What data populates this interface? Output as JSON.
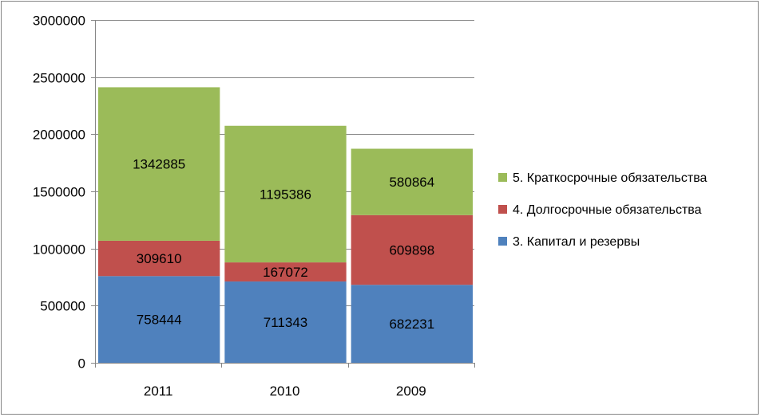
{
  "chart_data": {
    "type": "bar",
    "stacked": true,
    "categories": [
      "2011",
      "2010",
      "2009"
    ],
    "series": [
      {
        "name": "3. Капитал и резервы",
        "color": "#4F81BD",
        "values": [
          758444,
          711343,
          682231
        ]
      },
      {
        "name": "4. Долгосрочные обязательства",
        "color": "#C0504D",
        "values": [
          309610,
          167072,
          609898
        ]
      },
      {
        "name": "5. Краткосрочные обязательства",
        "color": "#9BBB59",
        "values": [
          1342885,
          1195386,
          580864
        ]
      }
    ],
    "yticks": [
      "0",
      "500000",
      "1000000",
      "1500000",
      "2000000",
      "2500000",
      "3000000"
    ],
    "ylim": [
      0,
      3000000
    ],
    "grid": true,
    "legend": "right",
    "legend_order": [
      2,
      1,
      0
    ]
  }
}
